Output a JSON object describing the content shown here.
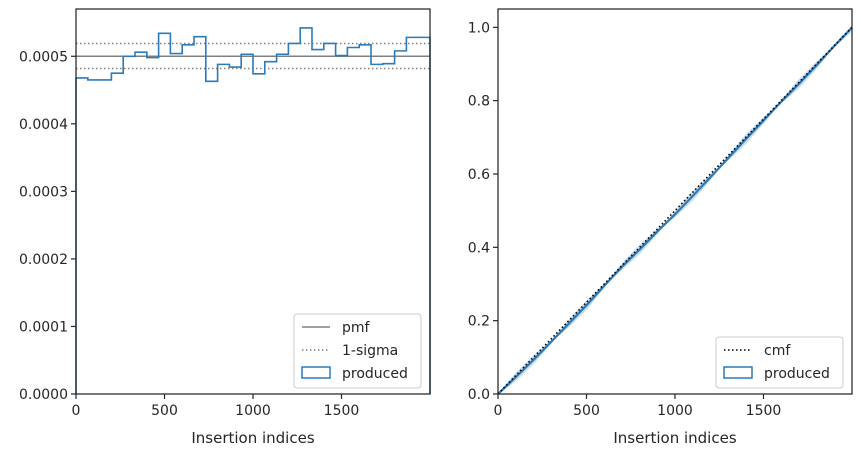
{
  "colors": {
    "produced": "#2b7bba",
    "produced_light": "#a9c7e3",
    "pmf": "#808080",
    "sigma": "#808080",
    "cmf": "#000000",
    "axis": "#262626"
  },
  "chart_data": [
    {
      "type": "histogram",
      "xlabel": "Insertion indices",
      "ylabel": "",
      "xlim": [
        0,
        2000
      ],
      "ylim": [
        0,
        0.00057
      ],
      "xticks": [
        0,
        500,
        1000,
        1500
      ],
      "xtick_labels": [
        "0",
        "500",
        "1000",
        "1500"
      ],
      "yticks": [
        0,
        0.0001,
        0.0002,
        0.0003,
        0.0004,
        0.0005
      ],
      "ytick_labels": [
        "0.0000",
        "0.0001",
        "0.0002",
        "0.0003",
        "0.0004",
        "0.0005"
      ],
      "pmf": 0.0005,
      "sigma_upper": 0.000519,
      "sigma_lower": 0.000482,
      "bin_edges": [
        0,
        66.7,
        133.3,
        200,
        266.7,
        333.3,
        400,
        466.7,
        533.3,
        600,
        666.7,
        733.3,
        800,
        866.7,
        933.3,
        1000,
        1066.7,
        1133.3,
        1200,
        1266.7,
        1333.3,
        1400,
        1466.7,
        1533.3,
        1600,
        1666.7,
        1733.3,
        1800,
        1866.7,
        1933.3,
        2000
      ],
      "values": [
        0.000468,
        0.000465,
        0.000465,
        0.000475,
        0.0005,
        0.000506,
        0.000498,
        0.000534,
        0.000504,
        0.000517,
        0.000529,
        0.000463,
        0.000488,
        0.000484,
        0.000503,
        0.000474,
        0.000492,
        0.000503,
        0.000519,
        0.000542,
        0.00051,
        0.000519,
        0.000501,
        0.000513,
        0.000517,
        0.000488,
        0.000489,
        0.000508,
        0.000528,
        0.000528
      ],
      "legend": {
        "position": "lower right",
        "entries": [
          {
            "label": "pmf",
            "style": "line"
          },
          {
            "label": "1-sigma",
            "style": "dotted"
          },
          {
            "label": "produced",
            "style": "box"
          }
        ]
      }
    },
    {
      "type": "line",
      "xlabel": "Insertion indices",
      "ylabel": "",
      "xlim": [
        0,
        2000
      ],
      "ylim": [
        0,
        1.05
      ],
      "xticks": [
        0,
        500,
        1000,
        1500
      ],
      "xtick_labels": [
        "0",
        "500",
        "1000",
        "1500"
      ],
      "yticks": [
        0,
        0.2,
        0.4,
        0.6,
        0.8,
        1.0
      ],
      "ytick_labels": [
        "0.0",
        "0.2",
        "0.4",
        "0.6",
        "0.8",
        "1.0"
      ],
      "series": [
        {
          "name": "cmf",
          "x": [
            0,
            2000
          ],
          "y": [
            0,
            1.0
          ]
        },
        {
          "name": "produced",
          "x": [
            0,
            100,
            200,
            300,
            400,
            500,
            600,
            700,
            800,
            900,
            1000,
            1100,
            1200,
            1300,
            1400,
            1500,
            1600,
            1700,
            1800,
            1900,
            2000
          ],
          "y": [
            0,
            0.046,
            0.093,
            0.142,
            0.192,
            0.242,
            0.295,
            0.347,
            0.394,
            0.443,
            0.49,
            0.54,
            0.591,
            0.643,
            0.695,
            0.746,
            0.797,
            0.846,
            0.897,
            0.949,
            1.0
          ]
        }
      ],
      "legend": {
        "position": "lower right",
        "entries": [
          {
            "label": "cmf",
            "style": "dotted"
          },
          {
            "label": "produced",
            "style": "box"
          }
        ]
      }
    }
  ]
}
